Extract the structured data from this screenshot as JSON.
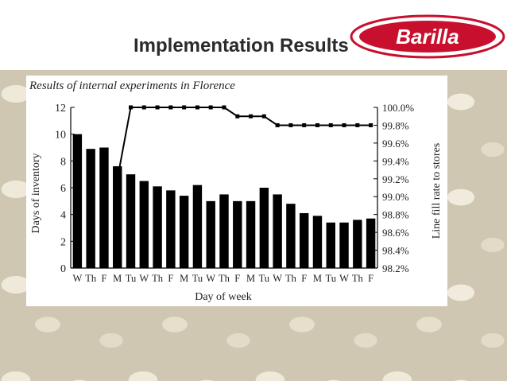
{
  "slide": {
    "title": "Implementation Results",
    "logo_text": "Barilla",
    "logo_color": "#c8102e"
  },
  "chart_data": {
    "type": "bar",
    "title": "Results of internal experiments in Florence",
    "xlabel": "Day of week",
    "ylabel": "Days of inventory",
    "y2label": "Line fill rate to stores",
    "categories": [
      "W",
      "Th",
      "F",
      "M",
      "Tu",
      "W",
      "Th",
      "F",
      "M",
      "Tu",
      "W",
      "Th",
      "F",
      "M",
      "Tu",
      "W",
      "Th",
      "F",
      "M",
      "Tu",
      "W",
      "Th",
      "F"
    ],
    "series": [
      {
        "values": [
          10,
          8.9,
          9,
          7.6,
          7,
          6.5,
          6.1,
          5.8,
          5.4,
          6.2,
          5,
          5.5,
          5,
          5,
          6,
          5.5,
          4.8,
          4.1,
          3.9,
          3.4,
          3.4,
          3.6,
          3.7
        ],
        "axis": "left",
        "kind": "bar"
      },
      {
        "values": [
          null,
          null,
          null,
          99.2,
          100,
          100,
          100,
          100,
          100,
          100,
          100,
          100,
          99.9,
          99.9,
          99.9,
          99.8,
          99.8,
          99.8,
          99.8,
          99.8,
          99.8,
          99.8,
          99.8
        ],
        "axis": "right",
        "kind": "line"
      }
    ],
    "ylim": [
      0,
      12
    ],
    "yticks": [
      0,
      2,
      4,
      6,
      8,
      10,
      12
    ],
    "y2lim": [
      98.2,
      100
    ],
    "y2ticks": [
      "98.2%",
      "98.4%",
      "98.6%",
      "98.8%",
      "99.0%",
      "99.2%",
      "99.4%",
      "99.6%",
      "99.8%",
      "100.0%"
    ],
    "y2tick_values": [
      98.2,
      98.4,
      98.6,
      98.8,
      99.0,
      99.2,
      99.4,
      99.6,
      99.8,
      100.0
    ],
    "bar_color": "#000000",
    "line_color": "#000000",
    "grid": false
  }
}
